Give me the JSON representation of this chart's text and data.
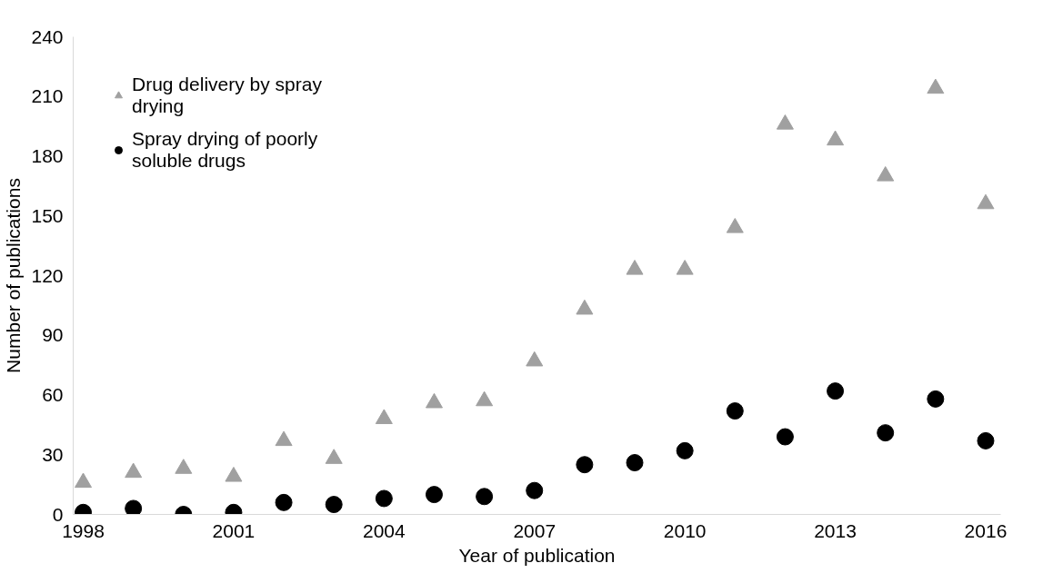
{
  "chart_data": {
    "type": "scatter",
    "xlabel": "Year of publication",
    "ylabel": "Number of publications",
    "x": [
      1998,
      1999,
      2000,
      2001,
      2002,
      2003,
      2004,
      2005,
      2006,
      2007,
      2008,
      2009,
      2010,
      2011,
      2012,
      2013,
      2014,
      2015,
      2016
    ],
    "series": [
      {
        "name": "Drug delivery by spray drying",
        "color": "#a0a0a0",
        "marker": "triangle",
        "values": [
          16,
          21,
          23,
          19,
          37,
          28,
          48,
          56,
          57,
          77,
          103,
          123,
          123,
          144,
          196,
          188,
          170,
          214,
          156
        ]
      },
      {
        "name": "Spray drying of poorly soluble drugs",
        "color": "#000000",
        "marker": "circle",
        "values": [
          1,
          3,
          0,
          1,
          6,
          5,
          8,
          10,
          9,
          12,
          25,
          26,
          32,
          52,
          39,
          62,
          41,
          58,
          37
        ]
      }
    ],
    "xlim": [
      1997.8,
      2016.3
    ],
    "xticks": [
      1998,
      2001,
      2004,
      2007,
      2010,
      2013,
      2016
    ],
    "ylim": [
      0,
      240
    ],
    "yticks": [
      0,
      30,
      60,
      90,
      120,
      150,
      180,
      210,
      240
    ],
    "grid": false,
    "legend": "top left"
  }
}
